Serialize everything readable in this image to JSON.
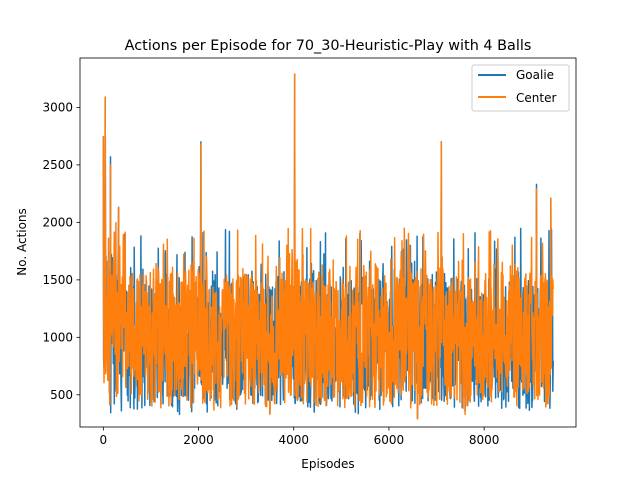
{
  "chart_data": {
    "type": "line",
    "title": "Actions per Episode for 70_30-Heuristic-Play with 4 Balls",
    "xlabel": "Episodes",
    "ylabel": "No. Actions",
    "xlim": [
      -490,
      9930
    ],
    "ylim": [
      220,
      3430
    ],
    "xticks": [
      0,
      2000,
      4000,
      6000,
      8000
    ],
    "xtick_labels": [
      "0",
      "2000",
      "4000",
      "6000",
      "8000"
    ],
    "yticks": [
      500,
      1000,
      1500,
      2000,
      2500,
      3000
    ],
    "ytick_labels": [
      "500",
      "1000",
      "1500",
      "2000",
      "2500",
      "3000"
    ],
    "grid": false,
    "legend_position": "top-right",
    "n_episodes": 9450,
    "typical_range": [
      500,
      1500
    ],
    "series": [
      {
        "name": "Goalie",
        "color": "#1f77b4",
        "peaks": [
          {
            "x": 0,
            "y": 2750
          },
          {
            "x": 40,
            "y": 3090
          },
          {
            "x": 150,
            "y": 2570
          },
          {
            "x": 320,
            "y": 2130
          },
          {
            "x": 2050,
            "y": 2700
          },
          {
            "x": 4020,
            "y": 3290
          },
          {
            "x": 7100,
            "y": 2700
          },
          {
            "x": 9100,
            "y": 2330
          },
          {
            "x": 9400,
            "y": 2210
          }
        ],
        "troughs": [
          {
            "x": 380,
            "y": 360
          },
          {
            "x": 1600,
            "y": 330
          },
          {
            "x": 3500,
            "y": 340
          },
          {
            "x": 4430,
            "y": 350
          },
          {
            "x": 6600,
            "y": 300
          },
          {
            "x": 7600,
            "y": 360
          }
        ]
      },
      {
        "name": "Center",
        "color": "#ff7f0e",
        "peaks": [
          {
            "x": 0,
            "y": 2750
          },
          {
            "x": 40,
            "y": 3090
          },
          {
            "x": 150,
            "y": 2500
          },
          {
            "x": 320,
            "y": 2130
          },
          {
            "x": 2050,
            "y": 2680
          },
          {
            "x": 4020,
            "y": 3290
          },
          {
            "x": 7100,
            "y": 2700
          },
          {
            "x": 9100,
            "y": 2290
          },
          {
            "x": 9400,
            "y": 2210
          }
        ],
        "troughs": [
          {
            "x": 3500,
            "y": 330
          },
          {
            "x": 6600,
            "y": 290
          },
          {
            "x": 7600,
            "y": 330
          }
        ]
      }
    ]
  }
}
